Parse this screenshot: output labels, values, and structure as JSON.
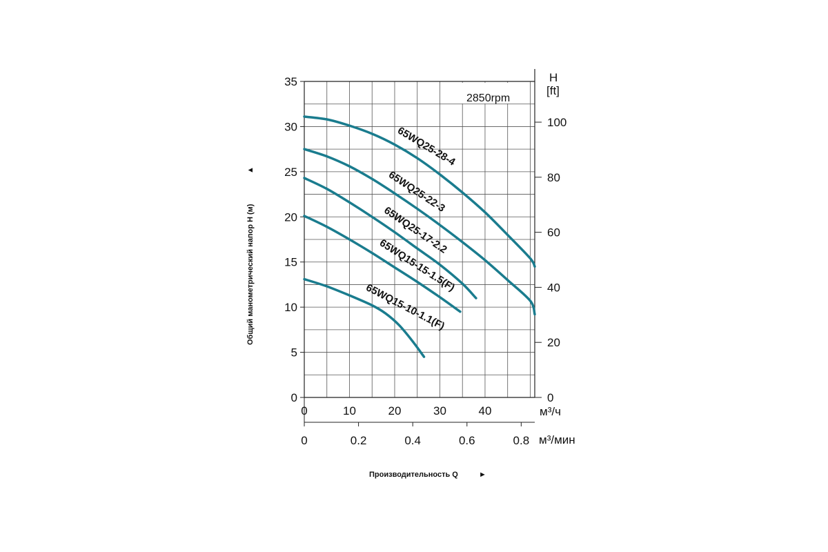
{
  "chart_data": {
    "type": "line",
    "annotation": "2850rpm",
    "ylabel": "Общий манометрический напор H (м)",
    "ylabel_arrow": "▲",
    "xlabel": "Производительность Q",
    "xlabel_arrow": "►",
    "y_left": {
      "ylim": [
        0,
        35
      ],
      "ticks": [
        0,
        5,
        10,
        15,
        20,
        25,
        30,
        35
      ]
    },
    "y_right": {
      "title_line1": "H",
      "title_line2": "[ft]",
      "ylim": [
        0,
        114.8
      ],
      "ticks": [
        0,
        20,
        40,
        60,
        80,
        100
      ]
    },
    "x_primary": {
      "unit": "м³/ч",
      "xlim": [
        0,
        51
      ],
      "ticks": [
        0,
        10,
        20,
        30,
        40
      ]
    },
    "x_secondary": {
      "unit": "м³/мин",
      "xlim": [
        0,
        0.85
      ],
      "ticks": [
        0,
        0.2,
        0.4,
        0.6,
        0.8
      ],
      "tick_labels": [
        "0",
        "0.2",
        "0.4",
        "0.6",
        "0.8"
      ]
    },
    "grid": true,
    "line_color": "#1a7c8e",
    "series": [
      {
        "name": "65WQ25-28-4",
        "x": [
          0,
          5,
          10,
          15,
          20,
          25,
          30,
          35,
          40,
          45,
          50,
          51
        ],
        "y": [
          31.1,
          30.8,
          30.1,
          29.2,
          28.0,
          26.5,
          24.7,
          22.7,
          20.5,
          18.0,
          15.4,
          14.5
        ]
      },
      {
        "name": "65WQ25-22-3",
        "x": [
          0,
          5,
          10,
          15,
          20,
          25,
          30,
          35,
          40,
          45,
          50,
          51
        ],
        "y": [
          27.5,
          26.7,
          25.6,
          24.2,
          22.6,
          20.9,
          19.1,
          17.2,
          15.2,
          13.0,
          10.7,
          9.2
        ]
      },
      {
        "name": "65WQ25-17-2.2",
        "x": [
          0,
          5,
          10,
          15,
          20,
          25,
          30,
          35,
          38
        ],
        "y": [
          24.3,
          23.1,
          21.6,
          20.0,
          18.3,
          16.5,
          14.7,
          12.6,
          11.0
        ]
      },
      {
        "name": "65WQ15-15-1.5(F)",
        "x": [
          0,
          5,
          10,
          15,
          20,
          25,
          30,
          34.5
        ],
        "y": [
          20.1,
          18.9,
          17.5,
          16.0,
          14.4,
          12.8,
          11.1,
          9.5
        ]
      },
      {
        "name": "65WQ15-10-1.1(F)",
        "x": [
          0,
          5,
          10,
          15,
          18,
          21,
          24,
          26.5
        ],
        "y": [
          13.1,
          12.3,
          11.3,
          10.2,
          9.3,
          8.0,
          6.2,
          4.5
        ]
      }
    ]
  }
}
